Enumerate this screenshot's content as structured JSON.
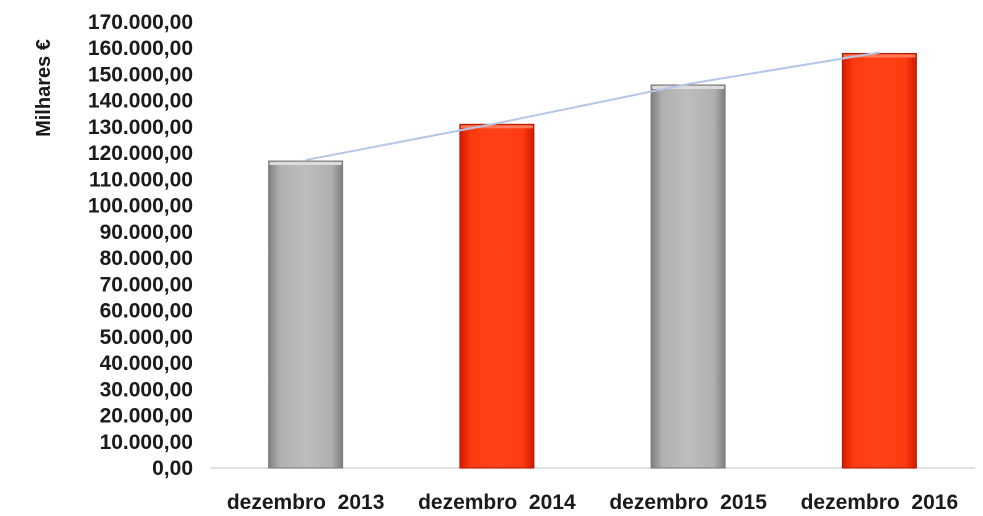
{
  "chart_data": {
    "type": "bar",
    "ylabel": "Milhares €",
    "categories": [
      "dezembro  2013",
      "dezembro  2014",
      "dezembro  2015",
      "dezembro  2016"
    ],
    "series": [
      {
        "values": [
          117000,
          131000,
          146000,
          158000
        ]
      }
    ],
    "trendline": true,
    "ylim": [
      0,
      170000
    ],
    "yticks": [
      "0,00",
      "10.000,00",
      "20.000,00",
      "30.000,00",
      "40.000,00",
      "50.000,00",
      "60.000,00",
      "70.000,00",
      "80.000,00",
      "90.000,00",
      "100.000,00",
      "110.000,00",
      "120.000,00",
      "130.000,00",
      "140.000,00",
      "150.000,00",
      "160.000,00",
      "170.000,00"
    ],
    "bar_colors": [
      "#a6a6a6",
      "#ff3300",
      "#a6a6a6",
      "#ff2200"
    ],
    "trend_color": "#b4c7e7",
    "grid": false,
    "legend": "none"
  }
}
